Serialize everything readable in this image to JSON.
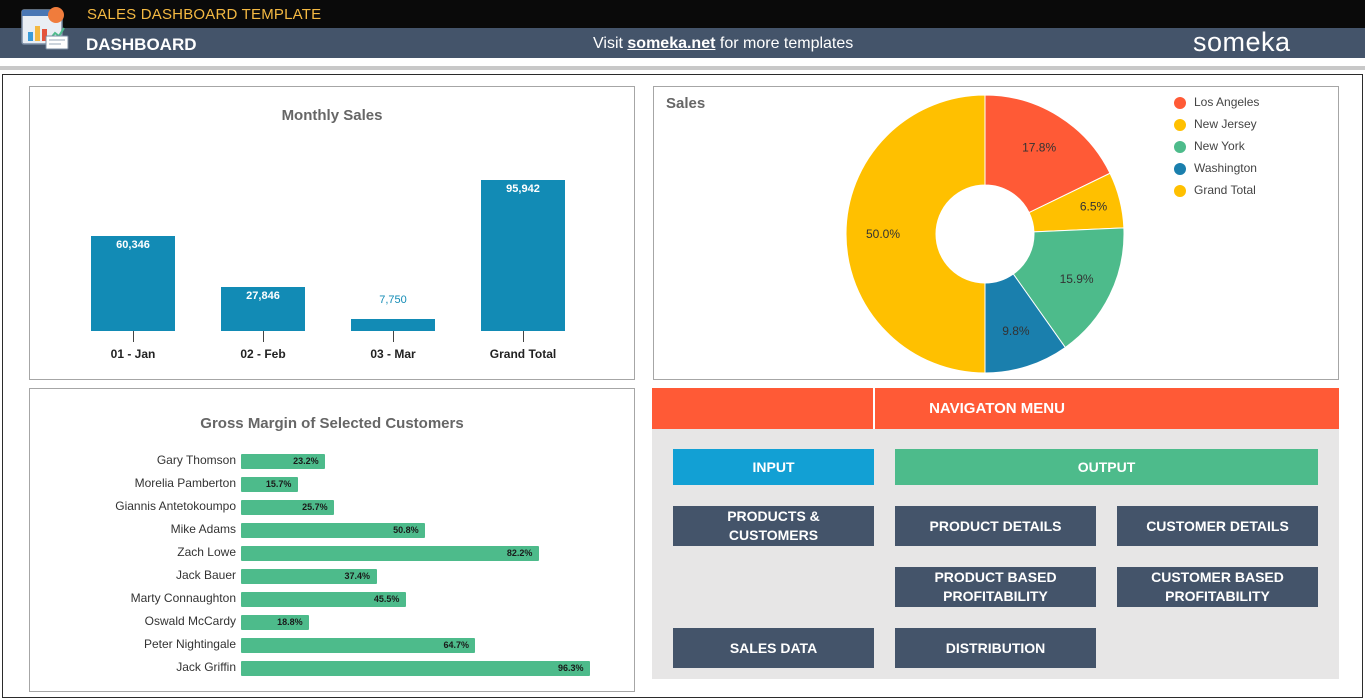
{
  "header": {
    "app_title": "SALES DASHBOARD TEMPLATE",
    "page_title": "DASHBOARD",
    "visit_prefix": "Visit",
    "visit_link": "someka.net",
    "visit_suffix": "for more templates",
    "brand": "someka"
  },
  "monthly_sales": {
    "title": "Monthly Sales",
    "chart_data": {
      "type": "bar",
      "categories": [
        "01 - Jan",
        "02 - Feb",
        "03 - Mar",
        "Grand Total"
      ],
      "values": [
        60346,
        27846,
        7750,
        95942
      ],
      "labels": [
        "60,346",
        "27,846",
        "7,750",
        "95,942"
      ],
      "title": "Monthly Sales",
      "ylim": [
        0,
        100000
      ],
      "color": "#128bb5"
    }
  },
  "sales_pie": {
    "title": "Sales",
    "chart_data": {
      "type": "pie",
      "title": "Sales",
      "categories": [
        "Los Angeles",
        "New Jersey",
        "New York",
        "Washington",
        "Grand Total"
      ],
      "values": [
        17.8,
        6.5,
        15.9,
        9.8,
        50.0
      ],
      "labels": [
        "17.8%",
        "6.5%",
        "15.9%",
        "9.8%",
        "50.0%"
      ],
      "colors": [
        "#ff5a36",
        "#ffc000",
        "#4dbb8b",
        "#1a7fad",
        "#ffc000"
      ],
      "legend": "top-right",
      "donut": true
    }
  },
  "gross_margin": {
    "title": "Gross Margin of Selected Customers",
    "chart_data": {
      "type": "bar",
      "orientation": "horizontal",
      "categories": [
        "Gary Thomson",
        "Morelia Pamberton",
        "Giannis Antetokoumpo",
        "Mike Adams",
        "Zach Lowe",
        "Jack Bauer",
        "Marty Connaughton",
        "Oswald McCardy",
        "Peter Nightingale",
        "Jack Griffin"
      ],
      "values": [
        23.2,
        15.7,
        25.7,
        50.8,
        82.2,
        37.4,
        45.5,
        18.8,
        64.7,
        96.3
      ],
      "labels": [
        "23.2%",
        "15.7%",
        "25.7%",
        "50.8%",
        "82.2%",
        "37.4%",
        "45.5%",
        "18.8%",
        "64.7%",
        "96.3%"
      ],
      "title": "Gross Margin of Selected Customers",
      "color": "#4dbb8b"
    }
  },
  "nav": {
    "title": "NAVIGATON MENU",
    "input": "INPUT",
    "output": "OUTPUT",
    "products_customers_line1": "PRODUCTS &",
    "products_customers_line2": "CUSTOMERS",
    "product_details": "PRODUCT DETAILS",
    "customer_details": "CUSTOMER DETAILS",
    "product_based_line1": "PRODUCT BASED",
    "product_based_line2": "PROFITABILITY",
    "customer_based_line1": "CUSTOMER BASED",
    "customer_based_line2": "PROFITABILITY",
    "sales_data": "SALES DATA",
    "distribution": "DISTRIBUTION"
  }
}
